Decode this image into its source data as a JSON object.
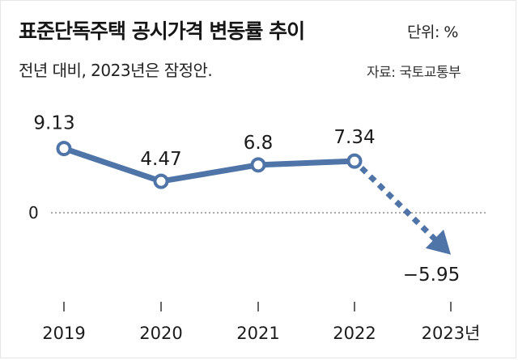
{
  "header": {
    "title": "표준단독주택 공시가격 변동률 추이",
    "unit": "단위: %",
    "subtitle": "전년 대비, 2023년은 잠정안.",
    "source": "자료: 국토교통부"
  },
  "colors": {
    "line": "#4e74a8",
    "marker_fill": "#ffffff",
    "text": "#1b1b1b",
    "baseline": "#555555"
  },
  "chart_data": {
    "type": "line",
    "title": "표준단독주택 공시가격 변동률 추이",
    "categories": [
      "2019",
      "2020",
      "2021",
      "2022",
      "2023년"
    ],
    "values": [
      9.13,
      4.47,
      6.8,
      7.34,
      -5.95
    ],
    "value_labels": [
      "9.13",
      "4.47",
      "6.8",
      "7.34",
      "−5.95"
    ],
    "projected_from_index": 3,
    "ylim": [
      -8,
      11
    ],
    "baseline_label": "0",
    "xlabel": "",
    "ylabel": "%"
  }
}
